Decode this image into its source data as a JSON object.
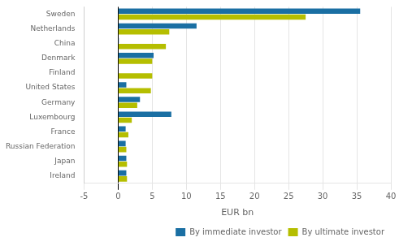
{
  "chart_data": {
    "type": "bar",
    "orientation": "horizontal",
    "categories": [
      "Ireland",
      "Japan",
      "Russian Federation",
      "France",
      "Luxembourg",
      "Germany",
      "United States",
      "Finland",
      "Denmark",
      "China",
      "Netherlands",
      "Sweden"
    ],
    "series": [
      {
        "name": "By immediate investor",
        "color": "#1a6fa3",
        "values": [
          1.2,
          1.2,
          1.1,
          1.1,
          7.8,
          3.2,
          1.2,
          0.0,
          5.2,
          0.1,
          11.5,
          35.5
        ]
      },
      {
        "name": "By ultimate investor",
        "color": "#b5be00",
        "values": [
          1.3,
          1.3,
          1.2,
          1.5,
          2.0,
          2.8,
          4.8,
          5.0,
          5.0,
          7.0,
          7.5,
          27.5
        ]
      }
    ],
    "xlabel": "EUR bn",
    "xlim": [
      -5,
      40
    ],
    "xticks": [
      -5,
      0,
      5,
      10,
      15,
      20,
      25,
      30,
      35,
      40
    ],
    "grid": true,
    "legend": "bottom"
  }
}
